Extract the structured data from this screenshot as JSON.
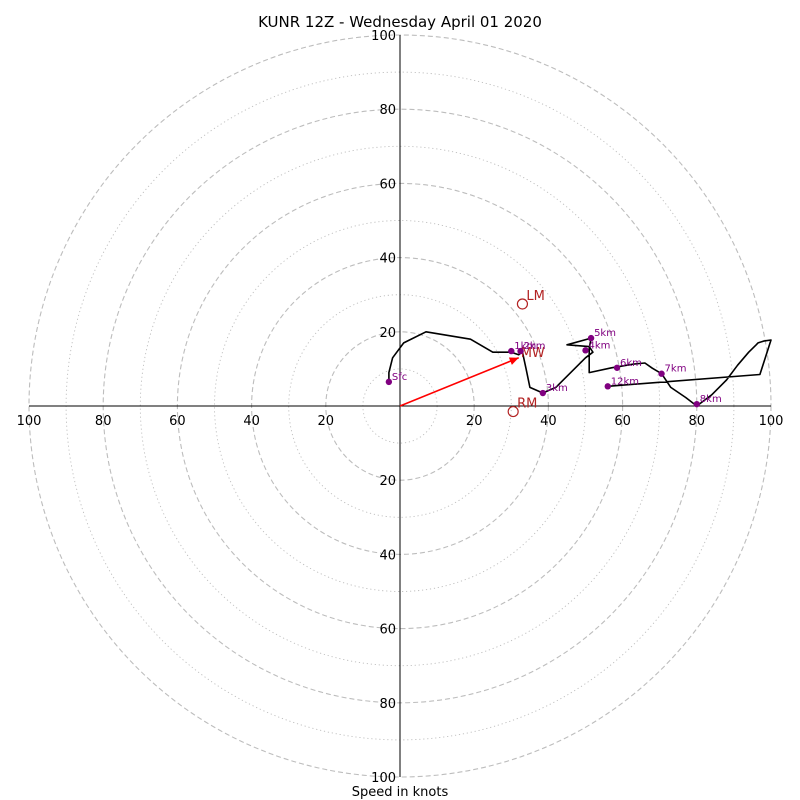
{
  "chart_data": {
    "type": "scatter",
    "title": "KUNR 12Z - Wednesday April 01 2020",
    "xlabel": "Speed in knots",
    "ylabel": "",
    "xlim": [
      -100,
      100
    ],
    "ylim": [
      -100,
      100
    ],
    "tick_values": [
      20,
      40,
      60,
      80,
      100
    ],
    "ring_style": {
      "major_every": 20,
      "minor_every": 10,
      "major": "dashed",
      "minor": "dotted",
      "color": "#bdbdbd"
    },
    "grid": true,
    "colors": {
      "hodograph": "#000000",
      "height_marker": "#800080",
      "mean_wind": "#ff0000",
      "storm_motion": "#b22222"
    },
    "hodograph_trace": [
      [
        -3,
        6
      ],
      [
        -3,
        9
      ],
      [
        -2,
        13
      ],
      [
        1,
        17
      ],
      [
        7,
        20
      ],
      [
        19,
        18
      ],
      [
        25,
        14.5
      ],
      [
        30,
        14.5
      ],
      [
        32,
        13.8
      ],
      [
        33,
        14.6
      ],
      [
        34,
        10
      ],
      [
        35,
        5
      ],
      [
        38.5,
        3.5
      ],
      [
        42,
        5
      ],
      [
        46,
        9
      ],
      [
        50,
        13
      ],
      [
        52,
        14.5
      ],
      [
        51,
        16
      ],
      [
        45,
        16.5
      ],
      [
        51.5,
        18.3
      ],
      [
        51,
        15.5
      ],
      [
        51,
        9
      ],
      [
        57,
        10.3
      ],
      [
        63,
        11.3
      ],
      [
        66,
        11.6
      ],
      [
        68,
        10.2
      ],
      [
        70.5,
        8.7
      ],
      [
        73,
        5
      ],
      [
        77,
        2.3
      ],
      [
        80,
        0
      ],
      [
        84,
        3
      ],
      [
        88,
        7
      ],
      [
        91,
        11
      ],
      [
        94,
        14.5
      ],
      [
        96,
        16.5
      ],
      [
        96.5,
        17
      ],
      [
        98,
        17.5
      ],
      [
        100,
        17.8
      ],
      [
        97,
        8.5
      ],
      [
        56,
        5.3
      ]
    ],
    "height_markers": [
      {
        "label": "Sfc",
        "u": -3,
        "v": 6.5
      },
      {
        "label": "1km",
        "u": 30,
        "v": 14.8
      },
      {
        "label": "2km",
        "u": 32.5,
        "v": 14.8
      },
      {
        "label": "3km",
        "u": 38.5,
        "v": 3.5
      },
      {
        "label": "4km",
        "u": 50,
        "v": 15
      },
      {
        "label": "5km",
        "u": 51.5,
        "v": 18.3
      },
      {
        "label": "6km",
        "u": 58.5,
        "v": 10.3
      },
      {
        "label": "7km",
        "u": 70.5,
        "v": 8.7
      },
      {
        "label": "8km",
        "u": 80,
        "v": 0.5
      },
      {
        "label": "12km",
        "u": 56,
        "v": 5.3
      }
    ],
    "mean_wind": {
      "label": "MW",
      "u": 32,
      "v": 13
    },
    "storm_motions": [
      {
        "label": "LM",
        "u": 33,
        "v": 27.5
      },
      {
        "label": "RM",
        "u": 30.5,
        "v": -1.5
      }
    ]
  }
}
